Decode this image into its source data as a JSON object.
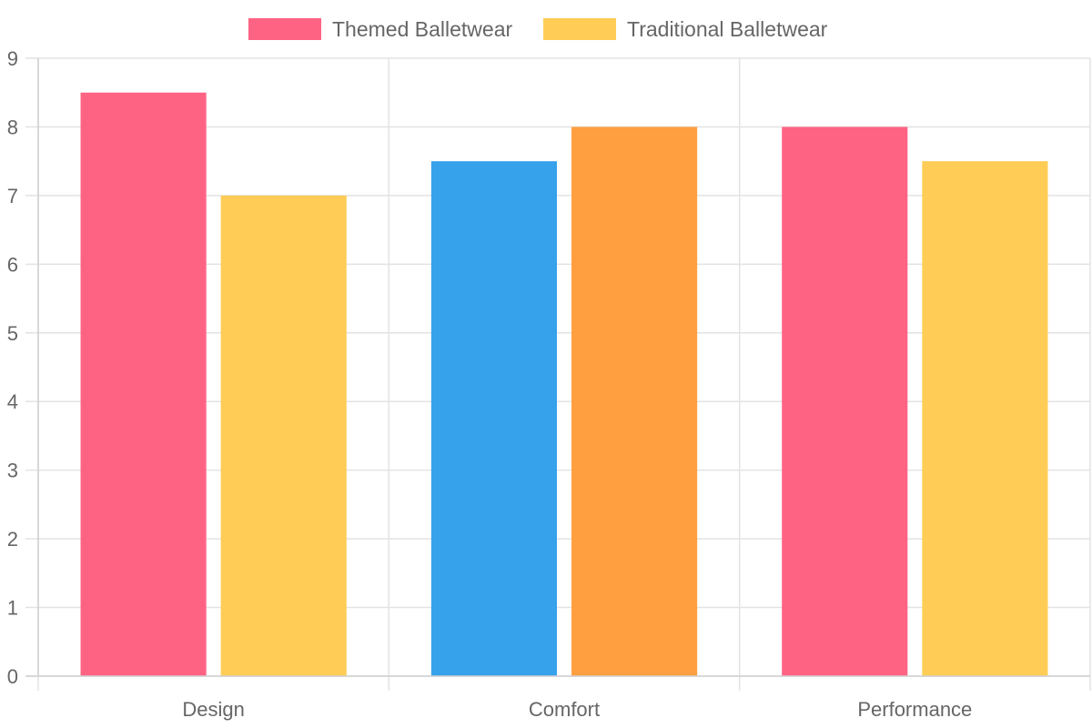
{
  "chart_data": {
    "type": "bar",
    "title": "",
    "xlabel": "",
    "ylabel": "",
    "categories": [
      "Design",
      "Comfort",
      "Performance"
    ],
    "ylim": [
      0,
      9
    ],
    "yticks": [
      0,
      1,
      2,
      3,
      4,
      5,
      6,
      7,
      8,
      9
    ],
    "grid": true,
    "legend_position": "top",
    "series": [
      {
        "name": "Themed Balletwear",
        "values": [
          8.5,
          7.5,
          8
        ],
        "color": "#ff6384",
        "bar_colors": [
          "#ff6384",
          "#36a2eb",
          "#ff6384"
        ]
      },
      {
        "name": "Traditional Balletwear",
        "values": [
          7,
          8,
          7.5
        ],
        "color": "#ffcd56",
        "bar_colors": [
          "#ffcd56",
          "#ff9f40",
          "#ffcd56"
        ]
      }
    ]
  }
}
